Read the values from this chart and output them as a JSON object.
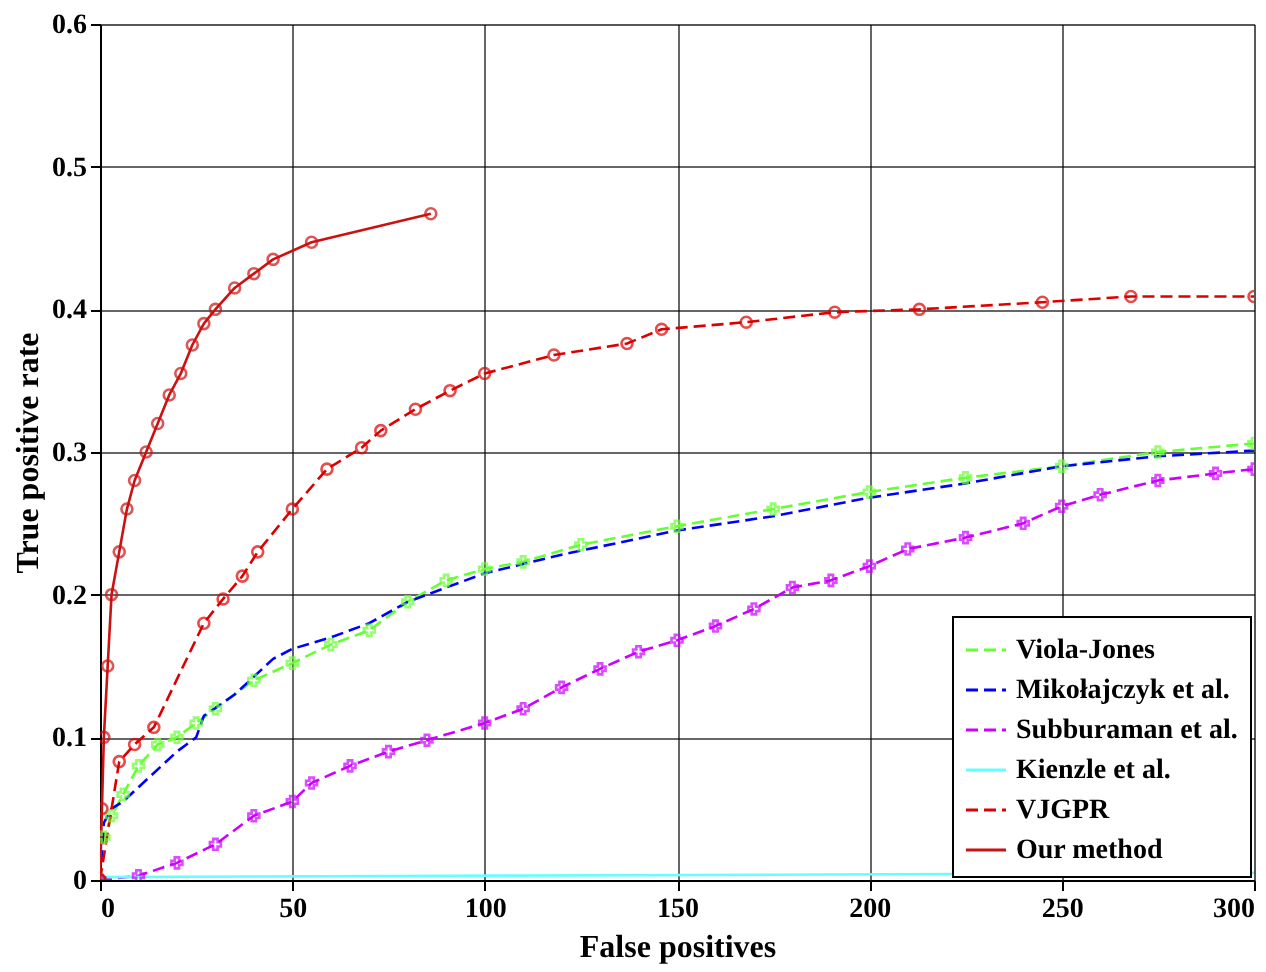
{
  "chart_data": {
    "type": "line",
    "xlabel": "False positives",
    "ylabel": "True positive rate",
    "xlim": [
      0,
      300
    ],
    "xticks": [
      0,
      50,
      100,
      150,
      200,
      250,
      300
    ],
    "ylim": [
      0,
      0.6
    ],
    "yticks": [
      0,
      0.1,
      0.2,
      0.3,
      0.4,
      0.5,
      0.6
    ],
    "grid": true,
    "legend": "bottom right",
    "series": [
      {
        "name": "Viola-Jones",
        "color": "#66ff33",
        "line_style": "dashed",
        "marker": "cross",
        "x": [
          0,
          1,
          3,
          6,
          10,
          15,
          20,
          25,
          30,
          40,
          50,
          60,
          70,
          80,
          90,
          100,
          110,
          125,
          150,
          175,
          200,
          225,
          250,
          275,
          300
        ],
        "values": [
          0,
          0.03,
          0.045,
          0.06,
          0.08,
          0.095,
          0.1,
          0.11,
          0.12,
          0.14,
          0.152,
          0.165,
          0.175,
          0.195,
          0.21,
          0.218,
          0.223,
          0.235,
          0.248,
          0.26,
          0.272,
          0.282,
          0.29,
          0.3,
          0.306
        ]
      },
      {
        "name": "Mikołajczyk et al.",
        "color": "#0000ff",
        "line_style": "dashed",
        "marker": "none",
        "x": [
          0,
          1,
          3,
          6,
          10,
          20,
          25,
          27,
          35,
          45,
          50,
          60,
          70,
          80,
          90,
          100,
          120,
          150,
          175,
          200,
          225,
          250,
          275,
          300
        ],
        "values": [
          0,
          0.04,
          0.05,
          0.055,
          0.065,
          0.09,
          0.1,
          0.115,
          0.13,
          0.155,
          0.162,
          0.17,
          0.18,
          0.195,
          0.205,
          0.215,
          0.228,
          0.245,
          0.255,
          0.268,
          0.278,
          0.29,
          0.297,
          0.301
        ]
      },
      {
        "name": "Subburaman et al.",
        "color": "#cc00ff",
        "line_style": "dashed",
        "marker": "cross",
        "x": [
          0,
          10,
          20,
          30,
          40,
          50,
          55,
          65,
          75,
          85,
          100,
          110,
          120,
          130,
          140,
          150,
          160,
          170,
          180,
          190,
          200,
          210,
          225,
          240,
          250,
          260,
          275,
          290,
          300
        ],
        "values": [
          0,
          0.003,
          0.012,
          0.025,
          0.045,
          0.055,
          0.068,
          0.08,
          0.09,
          0.098,
          0.11,
          0.12,
          0.135,
          0.148,
          0.16,
          0.168,
          0.178,
          0.19,
          0.205,
          0.21,
          0.22,
          0.232,
          0.24,
          0.25,
          0.262,
          0.27,
          0.28,
          0.285,
          0.288
        ]
      },
      {
        "name": "Kienzle et al.",
        "color": "#66ffff",
        "line_style": "solid",
        "marker": "none",
        "x": [
          0,
          300
        ],
        "values": [
          0.002,
          0.005
        ]
      },
      {
        "name": "VJGPR",
        "color": "#dd0000",
        "line_style": "dashed",
        "marker": "circle",
        "x": [
          0,
          5,
          9,
          14,
          27,
          32,
          37,
          41,
          50,
          59,
          68,
          73,
          82,
          91,
          100,
          118,
          137,
          146,
          168,
          191,
          213,
          245,
          268,
          300
        ],
        "values": [
          0,
          0.083,
          0.095,
          0.107,
          0.18,
          0.197,
          0.213,
          0.23,
          0.26,
          0.288,
          0.303,
          0.315,
          0.33,
          0.343,
          0.355,
          0.368,
          0.376,
          0.386,
          0.391,
          0.398,
          0.4,
          0.405,
          0.409,
          0.409
        ]
      },
      {
        "name": "Our method",
        "color": "#cc1111",
        "line_style": "solid",
        "marker": "circle",
        "x": [
          0,
          0.5,
          1,
          2,
          3,
          5,
          7,
          9,
          12,
          15,
          18,
          21,
          24,
          27,
          30,
          35,
          40,
          45,
          55,
          86
        ],
        "values": [
          0,
          0.05,
          0.1,
          0.15,
          0.2,
          0.23,
          0.26,
          0.28,
          0.3,
          0.32,
          0.34,
          0.355,
          0.375,
          0.39,
          0.4,
          0.415,
          0.425,
          0.435,
          0.447,
          0.467
        ]
      }
    ]
  }
}
